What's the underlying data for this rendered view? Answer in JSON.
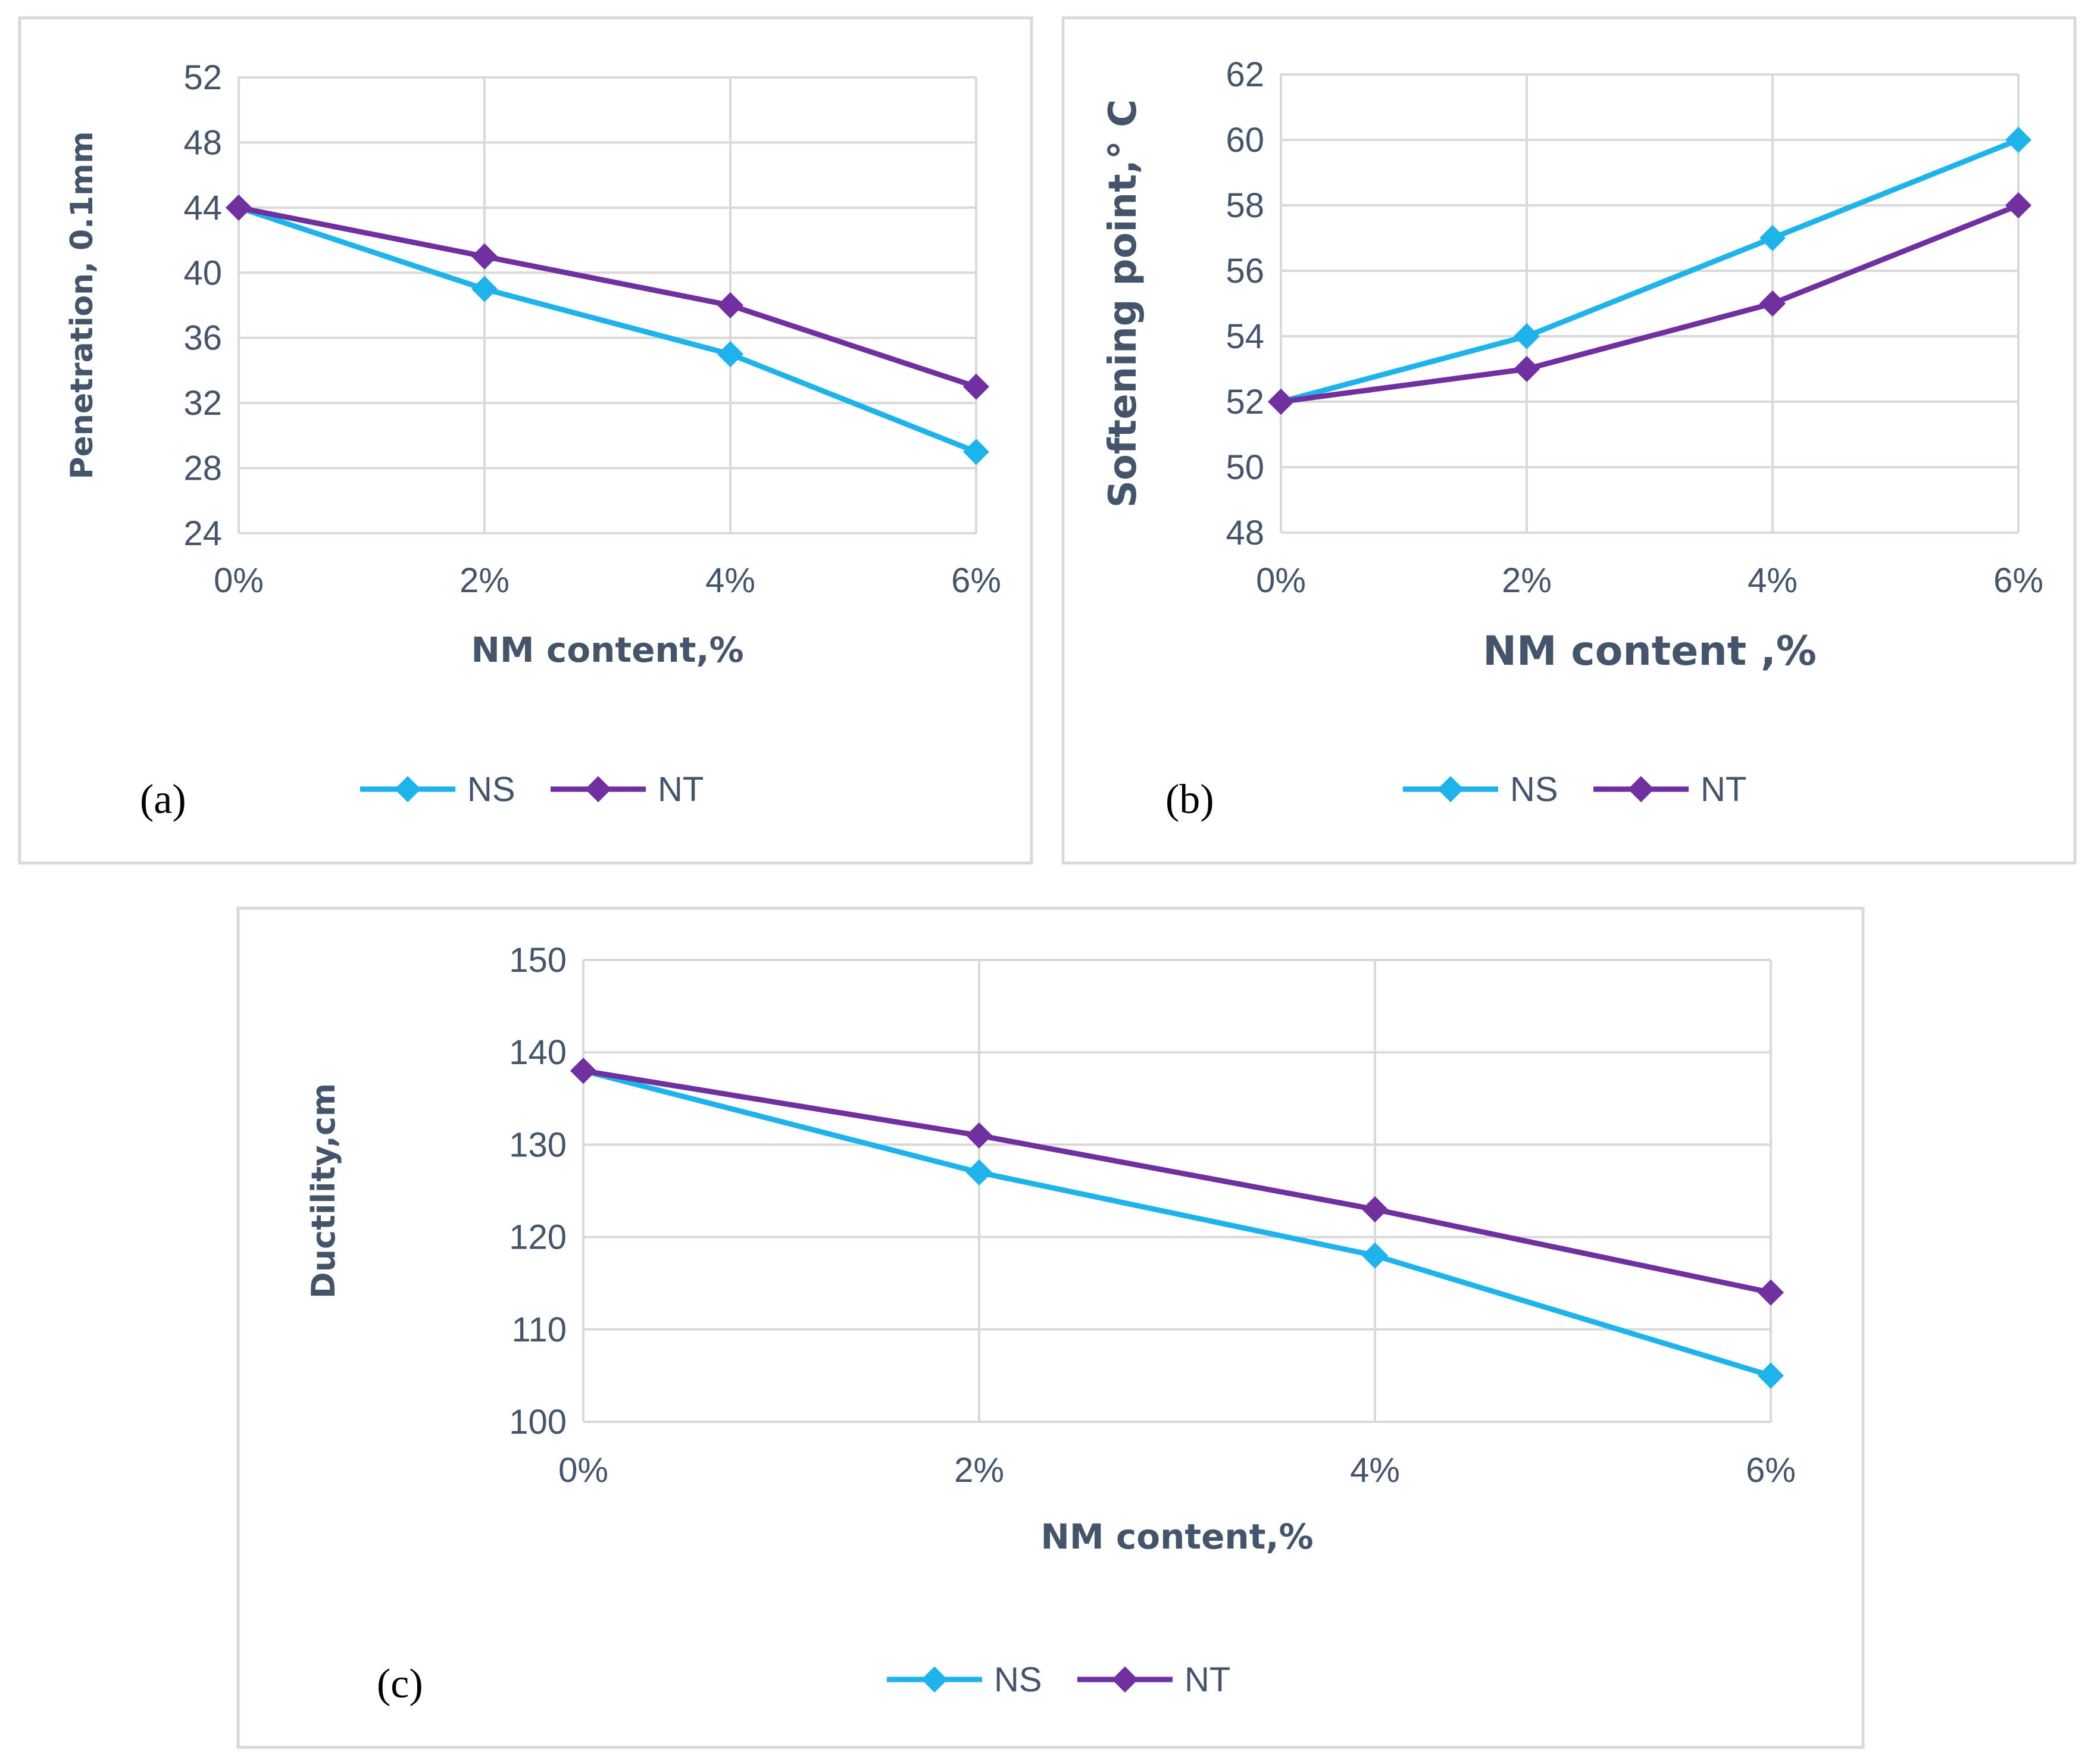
{
  "chart_data": [
    {
      "type": "line",
      "panel_label": "(a)",
      "title": "",
      "xlabel": "NM content,%",
      "ylabel": "Penetration, 0.1mm",
      "categories": [
        "0%",
        "2%",
        "4%",
        "6%"
      ],
      "ylim": [
        24,
        52
      ],
      "yticks": [
        24,
        28,
        32,
        36,
        40,
        44,
        48,
        52
      ],
      "grid": true,
      "legend_position": "bottom",
      "series": [
        {
          "name": "NS",
          "color": "#1eb4eb",
          "values": [
            44,
            39,
            35,
            29
          ]
        },
        {
          "name": "NT",
          "color": "#7030a0",
          "values": [
            44,
            41,
            38,
            33
          ]
        }
      ]
    },
    {
      "type": "line",
      "panel_label": "(b)",
      "title": "",
      "xlabel": "NM content ,%",
      "ylabel": "Softening point,° C",
      "categories": [
        "0%",
        "2%",
        "4%",
        "6%"
      ],
      "ylim": [
        48,
        62
      ],
      "yticks": [
        48,
        50,
        52,
        54,
        56,
        58,
        60,
        62
      ],
      "grid": true,
      "legend_position": "bottom",
      "series": [
        {
          "name": "NS",
          "color": "#1eb4eb",
          "values": [
            52,
            54,
            57,
            60
          ]
        },
        {
          "name": "NT",
          "color": "#7030a0",
          "values": [
            52,
            53,
            55,
            58
          ]
        }
      ]
    },
    {
      "type": "line",
      "panel_label": "(c)",
      "title": "",
      "xlabel": "NM content,%",
      "ylabel": "Ductility,cm",
      "categories": [
        "0%",
        "2%",
        "4%",
        "6%"
      ],
      "ylim": [
        100,
        150
      ],
      "yticks": [
        100,
        110,
        120,
        130,
        140,
        150
      ],
      "grid": true,
      "legend_position": "bottom",
      "series": [
        {
          "name": "NS",
          "color": "#1eb4eb",
          "values": [
            138,
            127,
            118,
            105
          ]
        },
        {
          "name": "NT",
          "color": "#7030a0",
          "values": [
            138,
            131,
            123,
            114
          ]
        }
      ]
    }
  ]
}
